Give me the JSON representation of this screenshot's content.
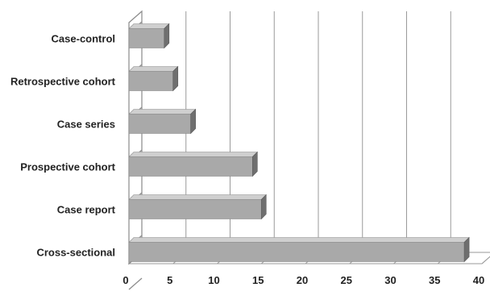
{
  "chart_data": {
    "type": "bar",
    "orientation": "horizontal",
    "style": "3d",
    "categories": [
      "Case-control",
      "Retrospective cohort",
      "Case series",
      "Prospective cohort",
      "Case report",
      "Cross-sectional"
    ],
    "values": [
      4,
      5,
      7,
      14,
      15,
      38
    ],
    "x_ticks": [
      "0",
      "5",
      "10",
      "15",
      "20",
      "25",
      "30",
      "35",
      "40"
    ],
    "xlim": [
      0,
      40
    ],
    "grid": true,
    "legend": "none",
    "title": "",
    "xlabel": "",
    "ylabel": "",
    "colors": {
      "bar_front": "#a9a9a9",
      "bar_top": "#cfcfcf",
      "bar_side": "#6f6f6f",
      "grid": "#9a9a9a"
    }
  }
}
